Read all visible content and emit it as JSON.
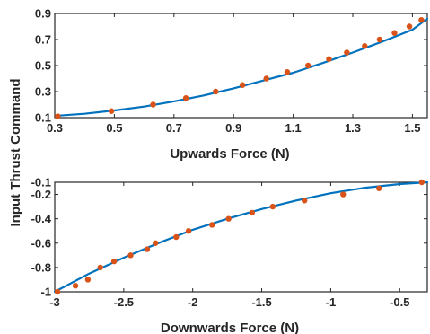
{
  "figure": {
    "shared_ylabel": "Input Thrust Command"
  },
  "colors": {
    "fit_line": "#0072BD",
    "markers": "#D95319",
    "axes": "#262626"
  },
  "chart_data": [
    {
      "type": "line",
      "xlabel": "Upwards Force (N)",
      "ylabel": "Input Thrust Command",
      "xlim": [
        0.3,
        1.55
      ],
      "ylim": [
        0.1,
        0.9
      ],
      "xticks": [
        0.3,
        0.5,
        0.7,
        0.9,
        1.1,
        1.3,
        1.5
      ],
      "xtick_labels": [
        "0.3",
        "0.5",
        "0.7",
        "0.9",
        "1.1",
        "1.3",
        "1.5"
      ],
      "yticks": [
        0.1,
        0.3,
        0.5,
        0.7,
        0.9
      ],
      "ytick_labels": [
        "0.1",
        "0.3",
        "0.5",
        "0.7",
        "0.9"
      ],
      "grid": false,
      "series": [
        {
          "kind": "fit-curve",
          "x": [
            0.31,
            0.4,
            0.5,
            0.6,
            0.7,
            0.8,
            0.9,
            1.0,
            1.1,
            1.2,
            1.3,
            1.4,
            1.5,
            1.55
          ],
          "y": [
            0.115,
            0.13,
            0.155,
            0.185,
            0.225,
            0.27,
            0.325,
            0.385,
            0.445,
            0.52,
            0.6,
            0.685,
            0.775,
            0.86
          ]
        },
        {
          "kind": "data-points",
          "x": [
            0.31,
            0.49,
            0.63,
            0.74,
            0.84,
            0.93,
            1.01,
            1.08,
            1.15,
            1.22,
            1.28,
            1.34,
            1.39,
            1.44,
            1.49,
            1.53
          ],
          "y": [
            0.11,
            0.15,
            0.2,
            0.25,
            0.3,
            0.35,
            0.4,
            0.45,
            0.5,
            0.55,
            0.6,
            0.65,
            0.7,
            0.75,
            0.8,
            0.85
          ]
        }
      ]
    },
    {
      "type": "line",
      "xlabel": "Downwards Force (N)",
      "ylabel": "Input Thrust Command",
      "xlim": [
        -3,
        -0.3
      ],
      "ylim": [
        -1,
        -0.1
      ],
      "xticks": [
        -3,
        -2.5,
        -2,
        -1.5,
        -1,
        -0.5
      ],
      "xtick_labels": [
        "-3",
        "-2.5",
        "-2",
        "-1.5",
        "-1",
        "-0.5"
      ],
      "yticks": [
        -1,
        -0.8,
        -0.6,
        -0.4,
        -0.2,
        -0.1
      ],
      "ytick_labels": [
        "-1",
        "-0.8",
        "-0.6",
        "-0.4",
        "-0.2",
        "-0.1"
      ],
      "grid": false,
      "series": [
        {
          "kind": "fit-curve",
          "x": [
            -3,
            -2.75,
            -2.5,
            -2.25,
            -2,
            -1.75,
            -1.5,
            -1.25,
            -1,
            -0.75,
            -0.5,
            -0.3
          ],
          "y": [
            -1,
            -0.85,
            -0.72,
            -0.6,
            -0.49,
            -0.4,
            -0.32,
            -0.25,
            -0.19,
            -0.145,
            -0.115,
            -0.1
          ]
        },
        {
          "kind": "data-points",
          "x": [
            -2.98,
            -2.85,
            -2.76,
            -2.67,
            -2.57,
            -2.45,
            -2.33,
            -2.27,
            -2.12,
            -2.03,
            -1.86,
            -1.74,
            -1.57,
            -1.42,
            -1.19,
            -0.91,
            -0.65,
            -0.34
          ],
          "y": [
            -1,
            -0.95,
            -0.9,
            -0.8,
            -0.75,
            -0.7,
            -0.65,
            -0.6,
            -0.55,
            -0.5,
            -0.45,
            -0.4,
            -0.35,
            -0.3,
            -0.25,
            -0.2,
            -0.15,
            -0.1
          ]
        }
      ]
    }
  ]
}
